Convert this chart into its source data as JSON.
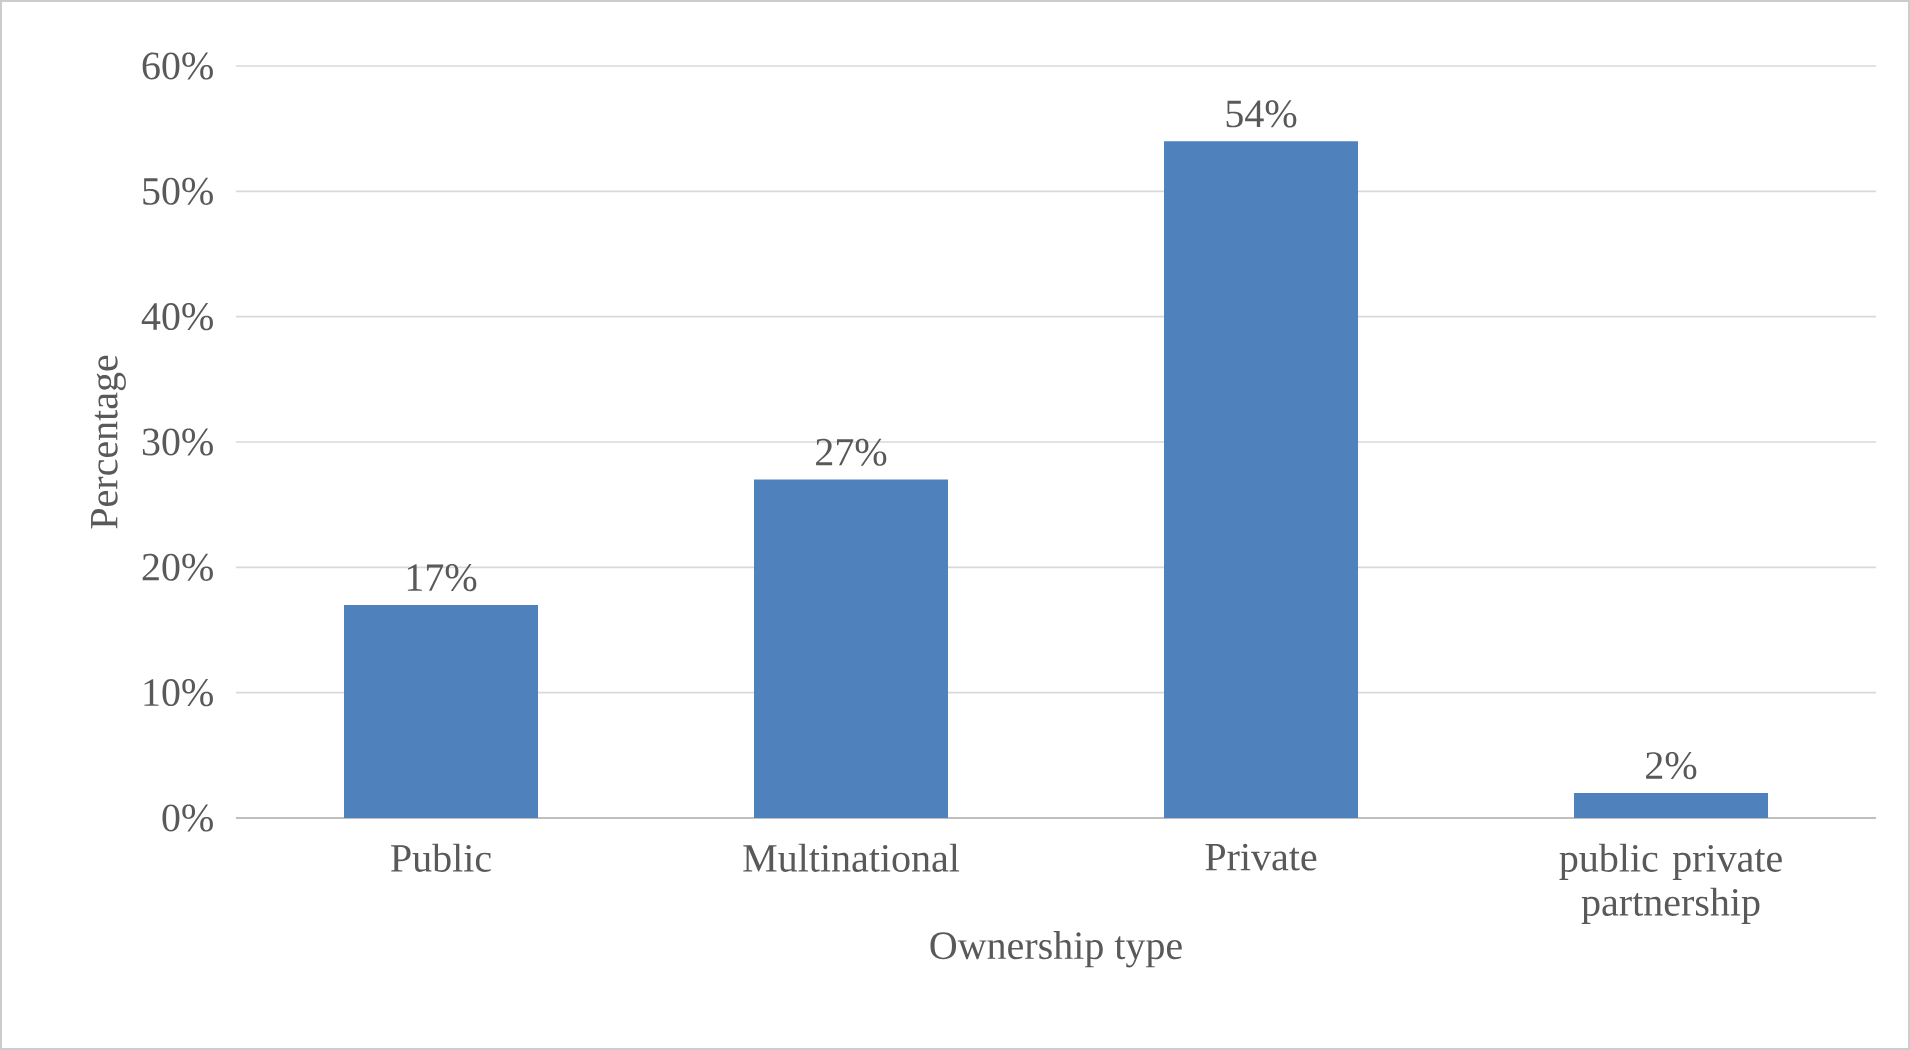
{
  "chart_data": {
    "type": "bar",
    "xlabel": "Ownership type",
    "ylabel": "Percentage",
    "categories": [
      "Public",
      "Multinational",
      "Private",
      "public private partnership"
    ],
    "values": [
      17,
      27,
      54,
      2
    ],
    "value_labels": [
      "17%",
      "27%",
      "54%",
      "2%"
    ],
    "color": "#4f81bd",
    "ylim": [
      0,
      60
    ],
    "yticks": [
      {
        "value": 0,
        "label": "0%"
      },
      {
        "value": 10,
        "label": "10%"
      },
      {
        "value": 20,
        "label": "20%"
      },
      {
        "value": 30,
        "label": "30%"
      },
      {
        "value": 40,
        "label": "40%"
      },
      {
        "value": 50,
        "label": "50%"
      },
      {
        "value": 60,
        "label": "60%"
      }
    ],
    "grid": "y"
  }
}
